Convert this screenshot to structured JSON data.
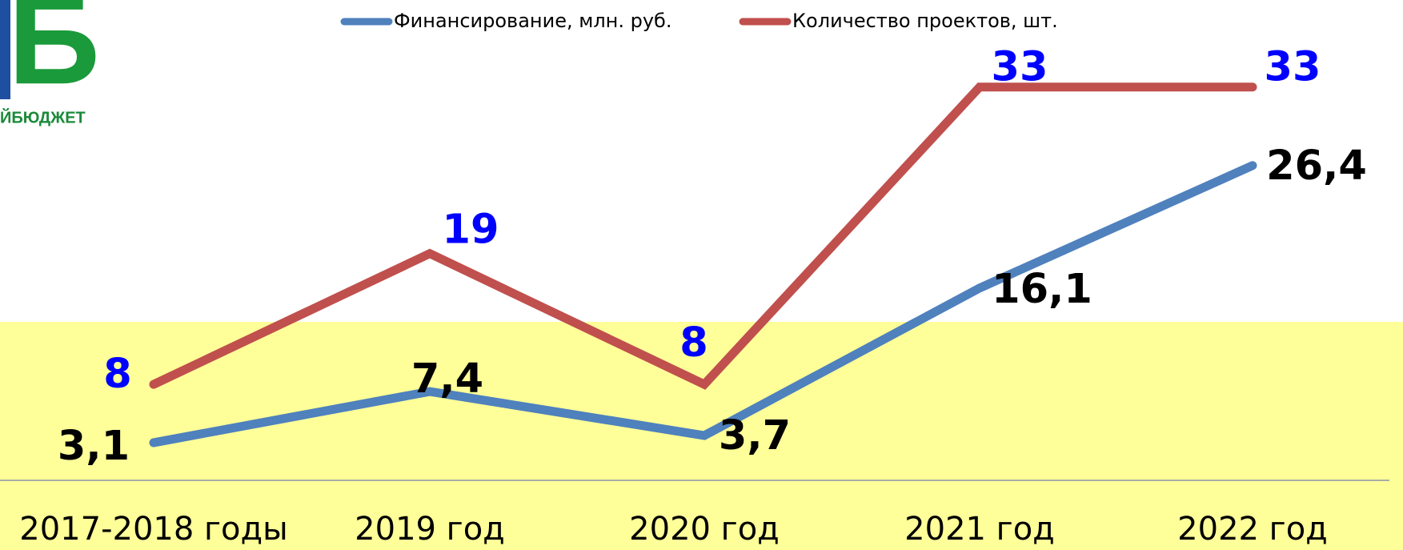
{
  "logo": {
    "letter": "Б",
    "text": "ЙБЮДЖЕТ"
  },
  "chart_data": {
    "type": "line",
    "categories": [
      "2017-2018 годы",
      "2019 год",
      "2020 год",
      "2021 год",
      "2022 год"
    ],
    "ylim": [
      0,
      35
    ],
    "legend": "top",
    "series": [
      {
        "name": "Финансирование, млн. руб.",
        "color": "#4f81bd",
        "label_color": "#000000",
        "values": [
          3.1,
          7.4,
          3.7,
          16.1,
          26.4
        ],
        "value_labels": [
          "3,1",
          "7,4",
          "3,7",
          "16,1",
          "26,4"
        ]
      },
      {
        "name": "Количество проектов, шт.",
        "color": "#c0504d",
        "label_color": "#0000ff",
        "values": [
          8,
          19,
          8,
          33,
          33
        ]
      }
    ]
  }
}
